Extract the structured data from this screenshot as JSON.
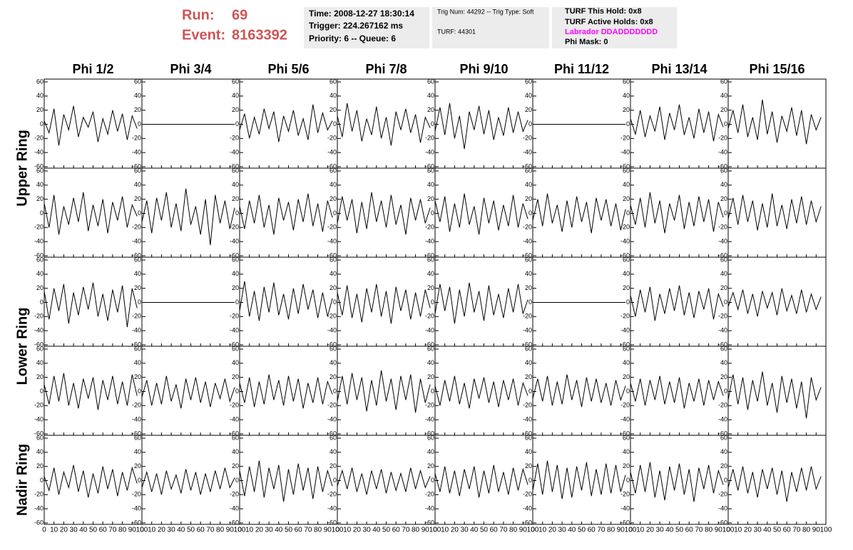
{
  "header": {
    "run_label": "Run:",
    "run": "69",
    "event_label": "Event:",
    "event": "8163392",
    "box1": [
      "Time: 2008-12-27 18:30:14",
      "Trigger: 224.267162 ms",
      "Priority: 6 -- Queue: 6"
    ],
    "box2": [
      "Trig Num: 44292 -- Trig Type: Soft",
      "TURF: 44301"
    ],
    "box3": [
      "TURF This Hold: 0x8",
      "TURF Active Holds: 0x8",
      "Labrador DDADDDDDDD",
      "Phi Mask: 0"
    ],
    "labrador_color": "#ff00ff"
  },
  "chart_data": {
    "type": "line",
    "color": "#000000",
    "columns": [
      "Phi 1/2",
      "Phi 3/4",
      "Phi 5/6",
      "Phi 7/8",
      "Phi 9/10",
      "Phi 11/12",
      "Phi 13/14",
      "Phi 15/16"
    ],
    "rows": [
      "Upper Ring",
      "Lower Ring",
      "Nadir Ring"
    ],
    "xlim": [
      0,
      100
    ],
    "xticks": [
      0,
      10,
      20,
      30,
      40,
      50,
      60,
      70,
      80,
      90,
      100
    ],
    "ylim": [
      -60,
      60
    ],
    "yticks": [
      -60,
      -40,
      -20,
      0,
      20,
      40,
      60
    ],
    "x": [
      0,
      5,
      10,
      15,
      20,
      25,
      30,
      35,
      40,
      45,
      50,
      55,
      60,
      65,
      70,
      75,
      80,
      85,
      90,
      95
    ],
    "panels": [
      [
        [
          5,
          -12,
          22,
          -30,
          14,
          -8,
          26,
          -18,
          10,
          -4,
          18,
          -25,
          8,
          -14,
          20,
          -10,
          15,
          -22,
          12,
          -6
        ],
        [
          0,
          0,
          0,
          0,
          0,
          0,
          0,
          0,
          0,
          0,
          0,
          0,
          0,
          0,
          0,
          0,
          0,
          0,
          0,
          0
        ],
        [
          -8,
          15,
          -20,
          10,
          -14,
          22,
          -6,
          18,
          -25,
          12,
          -10,
          20,
          -16,
          8,
          -22,
          28,
          -12,
          16,
          -8,
          5
        ],
        [
          12,
          -18,
          30,
          -10,
          20,
          -24,
          8,
          -15,
          25,
          -20,
          10,
          -30,
          18,
          -8,
          22,
          -12,
          14,
          -26,
          10,
          -5
        ],
        [
          -10,
          24,
          -15,
          30,
          -20,
          12,
          -35,
          18,
          -8,
          26,
          -14,
          20,
          -22,
          10,
          -16,
          24,
          -12,
          18,
          -10,
          6
        ],
        [
          0,
          0,
          0,
          0,
          0,
          0,
          0,
          0,
          0,
          0,
          0,
          0,
          0,
          0,
          0,
          0,
          0,
          0,
          0,
          0
        ],
        [
          8,
          -14,
          20,
          -18,
          12,
          -10,
          25,
          -22,
          16,
          -8,
          28,
          -15,
          10,
          -20,
          22,
          -12,
          18,
          -24,
          14,
          -4
        ],
        [
          -6,
          20,
          -12,
          28,
          -18,
          10,
          -22,
          35,
          -14,
          18,
          -26,
          12,
          -10,
          24,
          -16,
          20,
          -28,
          14,
          -8,
          10
        ]
      ],
      [
        [
          14,
          -20,
          26,
          -30,
          10,
          -16,
          22,
          -12,
          30,
          -25,
          12,
          -18,
          20,
          -28,
          16,
          -10,
          24,
          -20,
          12,
          -4
        ],
        [
          -12,
          18,
          -28,
          22,
          -10,
          30,
          -20,
          14,
          -25,
          35,
          -16,
          10,
          -30,
          20,
          -45,
          26,
          -14,
          18,
          -22,
          8
        ],
        [
          10,
          -22,
          18,
          -14,
          26,
          -20,
          12,
          -30,
          22,
          -10,
          16,
          -24,
          20,
          -12,
          28,
          -18,
          14,
          -26,
          18,
          -6
        ],
        [
          -14,
          24,
          -10,
          20,
          -28,
          16,
          -22,
          30,
          -12,
          18,
          -20,
          26,
          -16,
          12,
          -30,
          22,
          -10,
          20,
          -14,
          8
        ],
        [
          18,
          -12,
          24,
          -26,
          14,
          -20,
          28,
          -16,
          10,
          -30,
          22,
          -14,
          18,
          -24,
          12,
          -18,
          26,
          -20,
          14,
          -8
        ],
        [
          -10,
          20,
          -18,
          28,
          -14,
          12,
          -26,
          18,
          -20,
          24,
          -12,
          16,
          -28,
          22,
          -10,
          20,
          -18,
          14,
          -24,
          6
        ],
        [
          12,
          -16,
          22,
          -20,
          30,
          -14,
          18,
          -28,
          14,
          -10,
          26,
          -22,
          16,
          -18,
          24,
          -12,
          20,
          -26,
          16,
          -6
        ],
        [
          -8,
          22,
          -16,
          26,
          -12,
          18,
          -24,
          14,
          -20,
          28,
          -18,
          12,
          -22,
          20,
          -14,
          24,
          -16,
          18,
          -12,
          10
        ]
      ],
      [
        [
          16,
          -24,
          20,
          -12,
          26,
          -30,
          14,
          -18,
          22,
          -10,
          28,
          -20,
          12,
          -26,
          18,
          -14,
          24,
          -35,
          20,
          -8
        ],
        [
          0,
          0,
          0,
          0,
          0,
          0,
          0,
          0,
          0,
          0,
          0,
          0,
          0,
          0,
          0,
          0,
          0,
          0,
          0,
          0
        ],
        [
          -12,
          30,
          -20,
          16,
          -26,
          22,
          -14,
          28,
          -18,
          12,
          -24,
          20,
          -16,
          26,
          -10,
          18,
          -22,
          14,
          -20,
          6
        ],
        [
          14,
          -18,
          24,
          -22,
          12,
          -28,
          20,
          -14,
          26,
          -20,
          16,
          -30,
          22,
          -12,
          18,
          -24,
          14,
          -20,
          18,
          -8
        ],
        [
          -16,
          26,
          -12,
          22,
          -30,
          18,
          -20,
          28,
          -14,
          16,
          -26,
          24,
          -18,
          12,
          -22,
          20,
          -14,
          26,
          -16,
          4
        ],
        [
          0,
          0,
          0,
          0,
          0,
          0,
          0,
          0,
          0,
          0,
          0,
          0,
          0,
          0,
          0,
          0,
          0,
          0,
          0,
          0
        ],
        [
          10,
          -20,
          18,
          -14,
          22,
          -26,
          12,
          -16,
          20,
          -12,
          24,
          -18,
          14,
          -22,
          16,
          -10,
          20,
          -24,
          12,
          -6
        ],
        [
          -6,
          14,
          -10,
          18,
          -16,
          12,
          -20,
          16,
          -8,
          14,
          -18,
          20,
          -12,
          10,
          -16,
          18,
          -14,
          12,
          -10,
          8
        ]
      ],
      [
        [
          10,
          -18,
          22,
          -14,
          26,
          -20,
          12,
          -24,
          18,
          -10,
          20,
          -26,
          16,
          -12,
          22,
          -18,
          14,
          -20,
          24,
          -6
        ],
        [
          -8,
          16,
          -20,
          12,
          -18,
          22,
          -14,
          10,
          -24,
          18,
          -12,
          20,
          -16,
          14,
          -22,
          12,
          -10,
          18,
          -14,
          6
        ],
        [
          12,
          -16,
          20,
          -22,
          14,
          -18,
          24,
          -12,
          16,
          -20,
          22,
          -14,
          18,
          -24,
          12,
          -16,
          20,
          -18,
          14,
          -4
        ],
        [
          -14,
          22,
          -18,
          26,
          -12,
          20,
          -28,
          16,
          -20,
          30,
          -14,
          18,
          -26,
          22,
          -12,
          24,
          -30,
          18,
          -16,
          10
        ],
        [
          8,
          -20,
          16,
          -14,
          22,
          -18,
          12,
          -24,
          18,
          -10,
          20,
          -16,
          14,
          -22,
          16,
          -12,
          18,
          -20,
          12,
          -6
        ],
        [
          -10,
          18,
          -14,
          22,
          -20,
          14,
          -18,
          24,
          -12,
          16,
          -22,
          20,
          -14,
          18,
          -16,
          12,
          -20,
          16,
          -12,
          8
        ],
        [
          12,
          -14,
          18,
          -20,
          16,
          -12,
          22,
          -18,
          14,
          -16,
          20,
          -24,
          12,
          -14,
          18,
          -20,
          16,
          -12,
          14,
          -6
        ],
        [
          -12,
          24,
          -18,
          20,
          -26,
          16,
          -14,
          28,
          -20,
          12,
          -30,
          22,
          -16,
          18,
          -24,
          14,
          -38,
          20,
          -12,
          6
        ]
      ],
      [
        [
          6,
          -14,
          18,
          -20,
          12,
          -10,
          22,
          -16,
          14,
          -24,
          10,
          -18,
          20,
          -12,
          16,
          -22,
          12,
          -14,
          18,
          -4
        ],
        [
          -10,
          12,
          -16,
          10,
          -20,
          14,
          -12,
          8,
          -18,
          16,
          -14,
          12,
          -20,
          10,
          -16,
          14,
          -12,
          18,
          -10,
          4
        ],
        [
          14,
          -22,
          20,
          -16,
          28,
          -24,
          18,
          -12,
          22,
          -30,
          16,
          -20,
          24,
          -14,
          18,
          -26,
          20,
          -16,
          14,
          -8
        ],
        [
          -8,
          14,
          -12,
          18,
          -16,
          10,
          -20,
          14,
          -12,
          16,
          -18,
          12,
          -14,
          10,
          -16,
          18,
          -12,
          14,
          -10,
          6
        ],
        [
          10,
          -16,
          20,
          -18,
          14,
          -22,
          16,
          -12,
          20,
          -24,
          14,
          -18,
          22,
          -16,
          12,
          -20,
          18,
          -14,
          16,
          -6
        ],
        [
          -14,
          24,
          -20,
          28,
          -16,
          22,
          -26,
          18,
          -24,
          20,
          -14,
          26,
          -22,
          16,
          -20,
          24,
          -18,
          22,
          -16,
          8
        ],
        [
          12,
          -18,
          22,
          -16,
          26,
          -24,
          14,
          -28,
          20,
          -14,
          24,
          -20,
          16,
          -30,
          18,
          -12,
          22,
          -18,
          14,
          -6
        ],
        [
          -10,
          16,
          -14,
          20,
          -18,
          12,
          -24,
          16,
          -12,
          18,
          -20,
          14,
          -30,
          12,
          -16,
          18,
          -14,
          20,
          -12,
          6
        ]
      ]
    ]
  }
}
